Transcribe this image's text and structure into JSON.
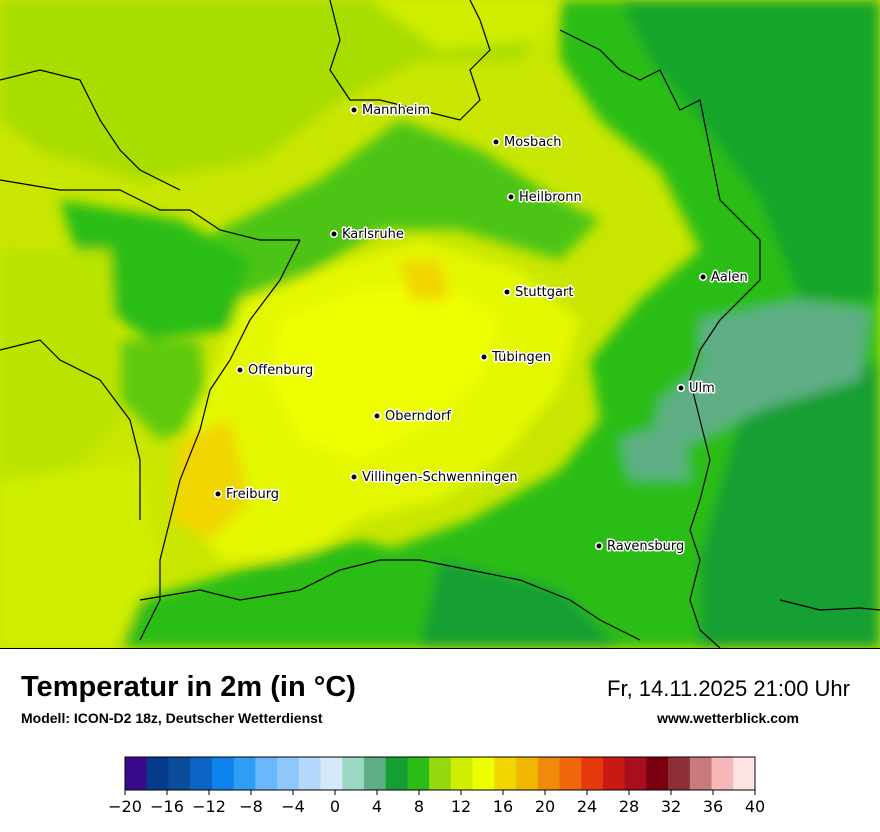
{
  "map": {
    "cities": [
      {
        "name": "Mannheim"
      },
      {
        "name": "Mosbach"
      },
      {
        "name": "Heilbronn"
      },
      {
        "name": "Karlsruhe"
      },
      {
        "name": "Aalen"
      },
      {
        "name": "Stuttgart"
      },
      {
        "name": "Tübingen"
      },
      {
        "name": "Offenburg"
      },
      {
        "name": "Ulm"
      },
      {
        "name": "Oberndorf"
      },
      {
        "name": "Villingen-Schwenningen"
      },
      {
        "name": "Freiburg"
      },
      {
        "name": "Ravensburg"
      }
    ]
  },
  "info": {
    "title": "Temperatur in 2m (in °C)",
    "model": "Modell: ICON-D2 18z, Deutscher Wetterdienst",
    "datetime": "Fr, 14.11.2025 21:00 Uhr",
    "website": "www.wetterblick.com"
  },
  "legend": {
    "min": -20,
    "max": 40,
    "step": 2,
    "colors": [
      "#3a0a8c",
      "#063a8a",
      "#0a4d9a",
      "#0b64c6",
      "#0d82ea",
      "#2e9df6",
      "#6ab8fb",
      "#8ec8fb",
      "#b2d9fb",
      "#d5e9fb",
      "#9ad8c1",
      "#5fae85",
      "#149f33",
      "#2bbd16",
      "#95d90c",
      "#cfee00",
      "#eeff00",
      "#f1d500",
      "#f2b800",
      "#f08a0c",
      "#f0660d",
      "#e73a0c",
      "#c81a14",
      "#a80f1c",
      "#7a0010",
      "#8e2f38",
      "#c87a7c",
      "#f6b8b8",
      "#fde3e3"
    ],
    "tick_labels": [
      "−20",
      "−16",
      "−12",
      "−8",
      "−4",
      "0",
      "4",
      "8",
      "12",
      "16",
      "20",
      "24",
      "28",
      "32",
      "36",
      "40"
    ]
  }
}
